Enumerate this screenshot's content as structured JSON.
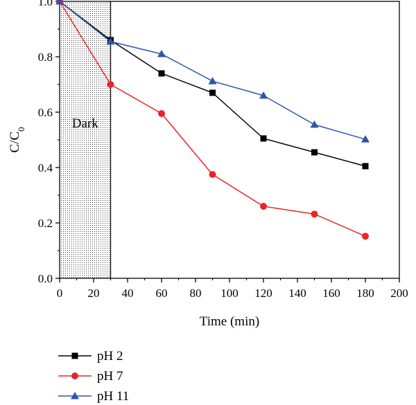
{
  "chart_data": {
    "type": "line",
    "xlabel": "Time (min)",
    "ylabel_main": "C/C",
    "ylabel_sub": "0",
    "xlim": [
      0,
      200
    ],
    "ylim": [
      0,
      1.0
    ],
    "xticks": [
      "0",
      "20",
      "40",
      "60",
      "80",
      "100",
      "120",
      "140",
      "160",
      "180",
      "200"
    ],
    "yticks": [
      "0.0",
      "0.2",
      "0.4",
      "0.6",
      "0.8",
      "1.0"
    ],
    "x": [
      0,
      30,
      60,
      90,
      120,
      150,
      180
    ],
    "series": [
      {
        "name": "pH 2",
        "marker": "square",
        "color": "#000000",
        "values": [
          1.0,
          0.86,
          0.74,
          0.67,
          0.505,
          0.455,
          0.405
        ]
      },
      {
        "name": "pH 7",
        "marker": "circle",
        "color": "#e8262a",
        "values": [
          1.0,
          0.7,
          0.595,
          0.375,
          0.26,
          0.232,
          0.152
        ]
      },
      {
        "name": "pH 11",
        "marker": "triangle",
        "color": "#2e55a8",
        "values": [
          1.0,
          0.855,
          0.81,
          0.712,
          0.66,
          0.555,
          0.502
        ]
      }
    ],
    "annotation": {
      "text": "Dark",
      "x_range": [
        0,
        30
      ]
    },
    "legend_position": "bottom-left"
  }
}
